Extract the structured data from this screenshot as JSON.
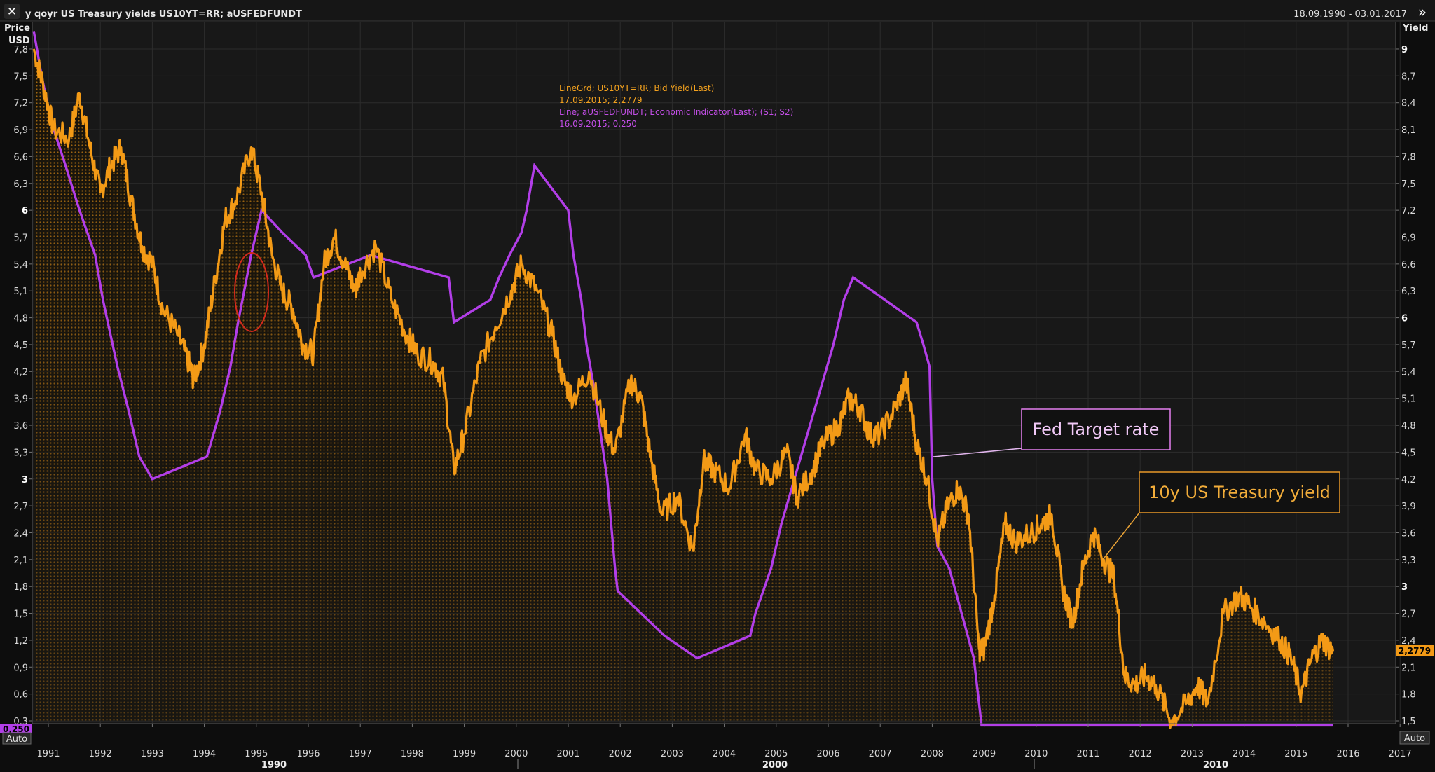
{
  "header": {
    "close_icon": "close-icon",
    "title": "y qoyr US Treasury yields US10YT=RR; aUSFEDFUNDT",
    "date_range": "18.09.1990 - 03.01.2017",
    "expand_icon": "double-chevron-right-icon"
  },
  "colors": {
    "background": "#0d0d0d",
    "plot_background": "#181818",
    "treasury": "#f39a16",
    "fed": "#b23ee8",
    "grid": "#2c2c2c"
  },
  "legend": {
    "line1": "LineGrd; US10YT=RR; Bid Yield(Last)",
    "line2": "17.09.2015; 2,2779",
    "line3": "Line; aUSFEDFUNDT; Economic Indicator(Last); (S1; S2)",
    "line4": "16.09.2015; 0,250"
  },
  "callouts": {
    "fed": "Fed Target rate",
    "treasury": "10y US Treasury yield"
  },
  "badges": {
    "left_value": "0,250",
    "right_value": "2,2779",
    "left_auto": "Auto",
    "right_auto": "Auto"
  },
  "chart_data": {
    "type": "line",
    "left_axis": {
      "title_line1": "Price",
      "title_line2": "USD",
      "ticks": [
        "7,8",
        "7,5",
        "7,2",
        "6,9",
        "6,6",
        "6,3",
        "6",
        "5,7",
        "5,4",
        "5,1",
        "4,8",
        "4,5",
        "4,2",
        "3,9",
        "3,6",
        "3,3",
        "3",
        "2,7",
        "2,4",
        "2,1",
        "1,8",
        "1,5",
        "1,2",
        "0,9",
        "0,6",
        "0,3"
      ],
      "ylim": [
        0.3,
        7.8
      ]
    },
    "right_axis": {
      "title": "Yield",
      "ticks": [
        "9",
        "8,7",
        "8,4",
        "8,1",
        "7,8",
        "7,5",
        "7,2",
        "6,9",
        "6,6",
        "6,3",
        "6",
        "5,7",
        "5,4",
        "5,1",
        "4,8",
        "4,5",
        "4,2",
        "3,9",
        "3,6",
        "3,3",
        "3",
        "2,7",
        "2,4",
        "2,1",
        "1,8",
        "1,5"
      ],
      "ylim": [
        1.5,
        9.0
      ]
    },
    "x_axis": {
      "years": [
        "1991",
        "1992",
        "1993",
        "1994",
        "1995",
        "1996",
        "1997",
        "1998",
        "1999",
        "2000",
        "2001",
        "2002",
        "2003",
        "2004",
        "2005",
        "2006",
        "2007",
        "2008",
        "2009",
        "2010",
        "2011",
        "2012",
        "2013",
        "2014",
        "2015",
        "2016",
        "2017"
      ],
      "decades": [
        "1990",
        "2000",
        "2010"
      ]
    },
    "series": [
      {
        "name": "US10YT=RR",
        "axis": "right",
        "points": [
          [
            1990.72,
            9.0
          ],
          [
            1990.9,
            8.6
          ],
          [
            1991.1,
            8.1
          ],
          [
            1991.4,
            8.0
          ],
          [
            1991.6,
            8.5
          ],
          [
            1991.8,
            7.9
          ],
          [
            1992.0,
            7.4
          ],
          [
            1992.2,
            7.7
          ],
          [
            1992.4,
            7.9
          ],
          [
            1992.6,
            7.3
          ],
          [
            1992.8,
            6.8
          ],
          [
            1993.0,
            6.6
          ],
          [
            1993.2,
            6.1
          ],
          [
            1993.5,
            5.8
          ],
          [
            1993.7,
            5.5
          ],
          [
            1993.8,
            5.3
          ],
          [
            1994.0,
            5.7
          ],
          [
            1994.2,
            6.4
          ],
          [
            1994.4,
            7.1
          ],
          [
            1994.6,
            7.3
          ],
          [
            1994.9,
            7.9
          ],
          [
            1995.1,
            7.4
          ],
          [
            1995.3,
            6.7
          ],
          [
            1995.5,
            6.3
          ],
          [
            1995.7,
            6.1
          ],
          [
            1995.9,
            5.7
          ],
          [
            1996.1,
            5.6
          ],
          [
            1996.3,
            6.6
          ],
          [
            1996.5,
            6.9
          ],
          [
            1996.7,
            6.6
          ],
          [
            1996.9,
            6.3
          ],
          [
            1997.0,
            6.5
          ],
          [
            1997.3,
            6.8
          ],
          [
            1997.6,
            6.2
          ],
          [
            1997.9,
            5.8
          ],
          [
            1998.1,
            5.6
          ],
          [
            1998.4,
            5.5
          ],
          [
            1998.6,
            5.3
          ],
          [
            1998.8,
            4.3
          ],
          [
            1999.0,
            4.7
          ],
          [
            1999.3,
            5.5
          ],
          [
            1999.6,
            5.9
          ],
          [
            1999.9,
            6.3
          ],
          [
            2000.1,
            6.6
          ],
          [
            2000.4,
            6.3
          ],
          [
            2000.7,
            5.8
          ],
          [
            2000.9,
            5.3
          ],
          [
            2001.1,
            5.1
          ],
          [
            2001.4,
            5.4
          ],
          [
            2001.7,
            4.8
          ],
          [
            2001.9,
            4.5
          ],
          [
            2002.2,
            5.3
          ],
          [
            2002.4,
            5.1
          ],
          [
            2002.6,
            4.4
          ],
          [
            2002.8,
            3.8
          ],
          [
            2003.1,
            4.0
          ],
          [
            2003.4,
            3.4
          ],
          [
            2003.6,
            4.4
          ],
          [
            2003.8,
            4.3
          ],
          [
            2004.1,
            4.1
          ],
          [
            2004.4,
            4.7
          ],
          [
            2004.6,
            4.3
          ],
          [
            2004.9,
            4.2
          ],
          [
            2005.2,
            4.5
          ],
          [
            2005.4,
            4.0
          ],
          [
            2005.7,
            4.3
          ],
          [
            2005.9,
            4.6
          ],
          [
            2006.2,
            4.8
          ],
          [
            2006.4,
            5.1
          ],
          [
            2006.6,
            5.0
          ],
          [
            2006.8,
            4.7
          ],
          [
            2007.0,
            4.7
          ],
          [
            2007.3,
            5.0
          ],
          [
            2007.5,
            5.3
          ],
          [
            2007.7,
            4.6
          ],
          [
            2007.9,
            4.2
          ],
          [
            2008.1,
            3.5
          ],
          [
            2008.3,
            3.9
          ],
          [
            2008.5,
            4.1
          ],
          [
            2008.7,
            3.8
          ],
          [
            2008.9,
            2.3
          ],
          [
            2009.0,
            2.3
          ],
          [
            2009.2,
            2.9
          ],
          [
            2009.4,
            3.7
          ],
          [
            2009.6,
            3.5
          ],
          [
            2009.9,
            3.6
          ],
          [
            2010.1,
            3.7
          ],
          [
            2010.3,
            3.8
          ],
          [
            2010.5,
            3.0
          ],
          [
            2010.7,
            2.6
          ],
          [
            2010.9,
            3.2
          ],
          [
            2011.1,
            3.6
          ],
          [
            2011.3,
            3.3
          ],
          [
            2011.5,
            3.1
          ],
          [
            2011.7,
            2.0
          ],
          [
            2011.9,
            1.9
          ],
          [
            2012.1,
            2.0
          ],
          [
            2012.3,
            1.9
          ],
          [
            2012.6,
            1.5
          ],
          [
            2012.9,
            1.7
          ],
          [
            2013.1,
            1.9
          ],
          [
            2013.3,
            1.7
          ],
          [
            2013.6,
            2.7
          ],
          [
            2013.9,
            2.9
          ],
          [
            2014.1,
            2.8
          ],
          [
            2014.4,
            2.6
          ],
          [
            2014.7,
            2.4
          ],
          [
            2014.9,
            2.2
          ],
          [
            2015.1,
            1.8
          ],
          [
            2015.3,
            2.2
          ],
          [
            2015.5,
            2.4
          ],
          [
            2015.71,
            2.2779
          ]
        ]
      },
      {
        "name": "aUSFEDFUNDT",
        "axis": "left",
        "steps": [
          [
            1990.72,
            8.0
          ],
          [
            1990.87,
            7.5
          ],
          [
            1991.05,
            7.0
          ],
          [
            1991.33,
            6.5
          ],
          [
            1991.6,
            6.0
          ],
          [
            1991.9,
            5.5
          ],
          [
            1992.05,
            5.0
          ],
          [
            1992.33,
            4.25
          ],
          [
            1992.55,
            3.75
          ],
          [
            1992.75,
            3.25
          ],
          [
            1993.0,
            3.0
          ],
          [
            1994.05,
            3.25
          ],
          [
            1994.3,
            3.75
          ],
          [
            1994.5,
            4.25
          ],
          [
            1994.65,
            4.75
          ],
          [
            1994.9,
            5.5
          ],
          [
            1995.1,
            6.0
          ],
          [
            1995.5,
            5.75
          ],
          [
            1995.95,
            5.5
          ],
          [
            1996.1,
            5.25
          ],
          [
            1997.2,
            5.5
          ],
          [
            1998.7,
            5.25
          ],
          [
            1998.8,
            4.75
          ],
          [
            1999.5,
            5.0
          ],
          [
            1999.67,
            5.25
          ],
          [
            1999.87,
            5.5
          ],
          [
            2000.1,
            5.75
          ],
          [
            2000.2,
            6.0
          ],
          [
            2000.35,
            6.5
          ],
          [
            2001.0,
            6.0
          ],
          [
            2001.1,
            5.5
          ],
          [
            2001.25,
            5.0
          ],
          [
            2001.35,
            4.5
          ],
          [
            2001.5,
            4.0
          ],
          [
            2001.75,
            3.0
          ],
          [
            2001.9,
            2.0
          ],
          [
            2001.95,
            1.75
          ],
          [
            2002.85,
            1.25
          ],
          [
            2003.48,
            1.0
          ],
          [
            2004.5,
            1.25
          ],
          [
            2004.6,
            1.5
          ],
          [
            2004.75,
            1.75
          ],
          [
            2004.9,
            2.0
          ],
          [
            2005.1,
            2.5
          ],
          [
            2005.35,
            3.0
          ],
          [
            2005.6,
            3.5
          ],
          [
            2005.85,
            4.0
          ],
          [
            2006.1,
            4.5
          ],
          [
            2006.3,
            5.0
          ],
          [
            2006.48,
            5.25
          ],
          [
            2007.7,
            4.75
          ],
          [
            2007.83,
            4.5
          ],
          [
            2007.95,
            4.25
          ],
          [
            2008.0,
            3.0
          ],
          [
            2008.1,
            2.25
          ],
          [
            2008.33,
            2.0
          ],
          [
            2008.8,
            1.0
          ],
          [
            2008.95,
            0.25
          ],
          [
            2015.71,
            0.25
          ]
        ]
      }
    ],
    "grid": true
  }
}
